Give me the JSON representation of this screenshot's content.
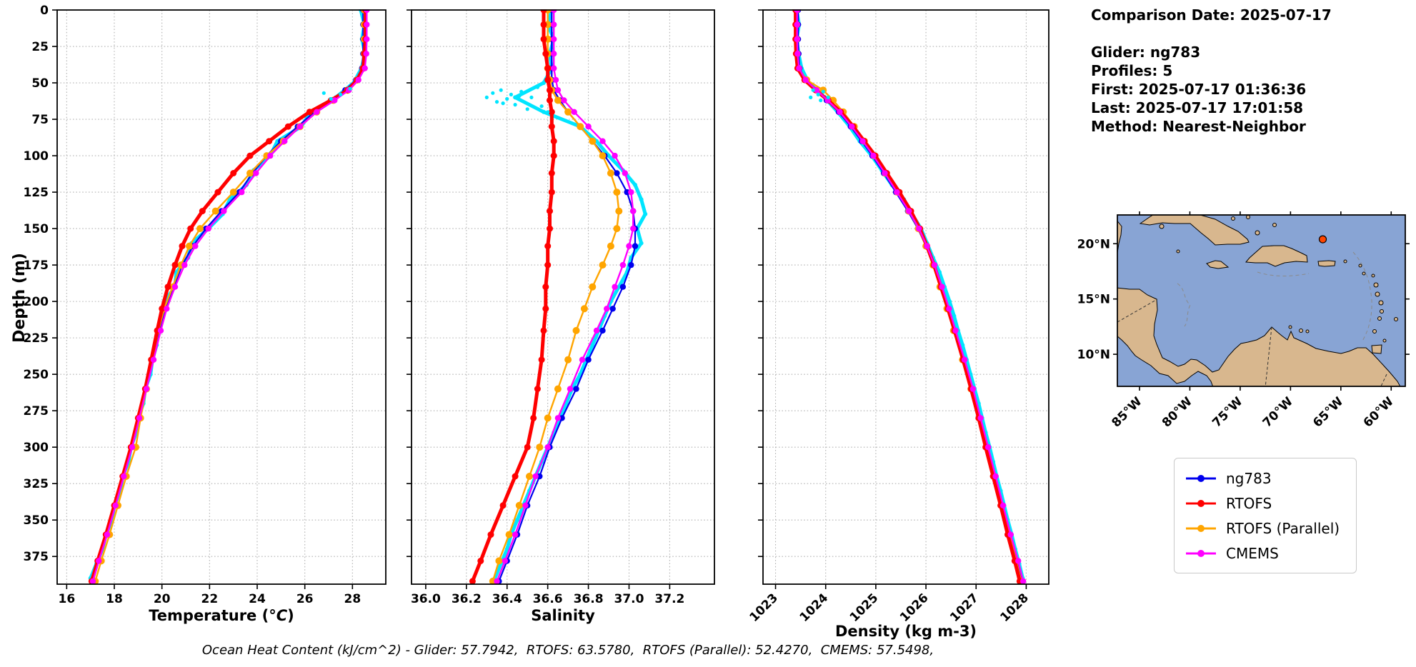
{
  "colors": {
    "ng783": "#0000ee",
    "rtofs": "#ff0000",
    "rtofs_parallel": "#ffa500",
    "cmems": "#ff00ff",
    "glider_raw": "#00e5ff",
    "grid": "#b3b3b3",
    "map_ocean": "#88a4d4",
    "map_land": "#d8b78e",
    "map_marker": "#ff4500"
  },
  "info_panel": {
    "comparison_date": "Comparison Date: 2025-07-17",
    "glider": "Glider: ng783",
    "profiles": "Profiles: 5",
    "first": "First: 2025-07-17 01:36:36",
    "last": "Last: 2025-07-17 17:01:58",
    "method": "Method: Nearest-Neighbor"
  },
  "footer": "Ocean Heat Content (kJ/cm^2) - Glider: 57.7942,  RTOFS: 63.5780,  RTOFS (Parallel): 52.4270,  CMEMS: 57.5498,",
  "legend": {
    "items": [
      {
        "label": "ng783",
        "color": "ng783"
      },
      {
        "label": "RTOFS",
        "color": "rtofs"
      },
      {
        "label": "RTOFS (Parallel)",
        "color": "rtofs_parallel"
      },
      {
        "label": "CMEMS",
        "color": "cmems"
      }
    ]
  },
  "depth_axis": {
    "label": "Depth (m)",
    "range": [
      0,
      394
    ],
    "ticks": [
      0,
      25,
      50,
      75,
      100,
      125,
      150,
      175,
      200,
      225,
      250,
      275,
      300,
      325,
      350,
      375
    ]
  },
  "depth_grids": {
    "model": [
      0,
      10,
      20,
      30,
      40,
      48,
      55,
      62,
      70,
      80,
      90,
      100,
      112,
      125,
      138,
      150,
      162,
      175,
      190,
      205,
      220,
      240,
      260,
      280,
      300,
      320,
      340,
      360,
      378,
      392
    ],
    "raw": [
      0,
      10,
      20,
      30,
      40,
      50,
      60,
      70,
      80,
      90,
      100,
      110,
      120,
      130,
      140,
      150,
      160,
      170,
      180,
      190,
      200,
      210,
      220,
      230,
      240,
      250,
      260,
      270,
      280,
      290,
      300,
      310,
      320,
      330,
      340,
      350,
      360,
      370,
      380,
      390
    ]
  },
  "chart_data": [
    {
      "id": "temperature",
      "type": "line",
      "xlabel_prefix": "Temperature (",
      "xlabel_unit": "°C",
      "xlabel_suffix": ")",
      "xlim": [
        15.6,
        29.4
      ],
      "xticks": [
        16,
        18,
        20,
        22,
        24,
        26,
        28
      ],
      "xtick_labels": [
        "16",
        "18",
        "20",
        "22",
        "24",
        "26",
        "28"
      ],
      "rotate_ticks": false,
      "series": [
        {
          "name": "glider-raw",
          "color": "glider_raw",
          "line_width": 5,
          "marker_radius": 3,
          "depth_grid": "raw",
          "values": [
            28.35,
            28.5,
            28.4,
            28.52,
            28.38,
            28.05,
            27.3,
            26.25,
            25.85,
            24.85,
            24.55,
            23.85,
            23.55,
            22.85,
            22.55,
            21.95,
            21.25,
            21.1,
            20.6,
            20.55,
            20.1,
            20.05,
            19.8,
            19.78,
            19.6,
            19.52,
            19.3,
            19.22,
            19.0,
            18.92,
            18.7,
            18.6,
            18.35,
            18.25,
            18.0,
            17.9,
            17.65,
            17.5,
            17.25,
            17.0
          ]
        },
        {
          "name": "ng783",
          "color": "ng783",
          "line_width": 2.2,
          "marker_radius": 4.2,
          "depth_grid": "model",
          "values": [
            28.45,
            28.45,
            28.45,
            28.45,
            28.4,
            28.15,
            27.7,
            27.1,
            26.4,
            25.7,
            25.0,
            24.4,
            23.8,
            23.25,
            22.5,
            21.85,
            21.3,
            20.85,
            20.5,
            20.15,
            19.9,
            19.6,
            19.35,
            19.05,
            18.75,
            18.4,
            18.05,
            17.7,
            17.35,
            17.1
          ]
        },
        {
          "name": "rtofs-parallel",
          "color": "rtofs_parallel",
          "line_width": 2.4,
          "marker_radius": 5,
          "depth_grid": "model",
          "values": [
            28.5,
            28.5,
            28.5,
            28.5,
            28.45,
            28.2,
            27.8,
            27.2,
            26.5,
            25.8,
            25.1,
            24.4,
            23.7,
            23.0,
            22.25,
            21.6,
            21.15,
            20.8,
            20.45,
            20.1,
            19.85,
            19.6,
            19.35,
            19.1,
            18.9,
            18.5,
            18.15,
            17.8,
            17.45,
            17.2
          ]
        },
        {
          "name": "rtofs",
          "color": "rtofs",
          "line_width": 5,
          "marker_radius": 4.5,
          "depth_grid": "model",
          "values": [
            28.55,
            28.55,
            28.55,
            28.5,
            28.45,
            28.2,
            27.8,
            27.1,
            26.2,
            25.3,
            24.5,
            23.7,
            23.0,
            22.35,
            21.7,
            21.2,
            20.85,
            20.55,
            20.25,
            20.0,
            19.8,
            19.55,
            19.3,
            19.0,
            18.7,
            18.35,
            18.0,
            17.65,
            17.3,
            17.05
          ]
        },
        {
          "name": "cmems",
          "color": "cmems",
          "line_width": 2.4,
          "marker_radius": 4.2,
          "depth_grid": "model",
          "values": [
            28.6,
            28.6,
            28.6,
            28.58,
            28.52,
            28.25,
            27.85,
            27.25,
            26.5,
            25.8,
            25.15,
            24.55,
            23.95,
            23.35,
            22.6,
            21.95,
            21.4,
            20.95,
            20.55,
            20.2,
            19.95,
            19.65,
            19.35,
            19.05,
            18.75,
            18.4,
            18.05,
            17.7,
            17.35,
            17.1
          ]
        }
      ],
      "scatter": {
        "color": "glider_raw",
        "points": [
          [
            27.9,
            54
          ],
          [
            27.5,
            58
          ],
          [
            27.1,
            61
          ],
          [
            26.8,
            57
          ]
        ]
      }
    },
    {
      "id": "salinity",
      "type": "line",
      "xlabel_prefix": "Salinity",
      "xlabel_unit": "",
      "xlabel_suffix": "",
      "xlim": [
        35.93,
        37.42
      ],
      "xticks": [
        36.0,
        36.2,
        36.4,
        36.6,
        36.8,
        37.0,
        37.2
      ],
      "xtick_labels": [
        "36.0",
        "36.2",
        "36.4",
        "36.6",
        "36.8",
        "37.0",
        "37.2"
      ],
      "rotate_ticks": false,
      "series": [
        {
          "name": "glider-raw",
          "color": "glider_raw",
          "line_width": 5,
          "marker_radius": 3,
          "depth_grid": "raw",
          "values": [
            36.62,
            36.6,
            36.63,
            36.61,
            36.62,
            36.58,
            36.44,
            36.58,
            36.76,
            36.84,
            36.9,
            36.97,
            37.03,
            37.06,
            37.08,
            37.04,
            37.06,
            37.01,
            36.99,
            36.95,
            36.91,
            36.88,
            36.85,
            36.82,
            36.79,
            36.76,
            36.72,
            36.69,
            36.66,
            36.63,
            36.6,
            36.57,
            36.54,
            36.51,
            36.48,
            36.45,
            36.42,
            36.4,
            36.37,
            36.34
          ]
        },
        {
          "name": "ng783",
          "color": "ng783",
          "line_width": 2.2,
          "marker_radius": 4.2,
          "depth_grid": "model",
          "values": [
            36.62,
            36.62,
            36.62,
            36.62,
            36.62,
            36.62,
            36.63,
            36.66,
            36.7,
            36.76,
            36.82,
            36.88,
            36.94,
            36.99,
            37.02,
            37.03,
            37.03,
            37.01,
            36.97,
            36.92,
            36.87,
            36.8,
            36.74,
            36.67,
            36.61,
            36.56,
            36.5,
            36.45,
            36.4,
            36.36
          ]
        },
        {
          "name": "rtofs-parallel",
          "color": "rtofs_parallel",
          "line_width": 2.4,
          "marker_radius": 5,
          "depth_grid": "model",
          "values": [
            36.6,
            36.6,
            36.6,
            36.6,
            36.6,
            36.61,
            36.62,
            36.65,
            36.7,
            36.76,
            36.82,
            36.87,
            36.91,
            36.94,
            36.95,
            36.94,
            36.91,
            36.87,
            36.82,
            36.78,
            36.74,
            36.7,
            36.65,
            36.6,
            36.56,
            36.51,
            36.46,
            36.41,
            36.36,
            36.33
          ]
        },
        {
          "name": "rtofs",
          "color": "rtofs",
          "line_width": 5,
          "marker_radius": 4.5,
          "depth_grid": "model",
          "values": [
            36.58,
            36.58,
            36.58,
            36.59,
            36.6,
            36.6,
            36.61,
            36.61,
            36.62,
            36.62,
            36.63,
            36.63,
            36.62,
            36.62,
            36.61,
            36.61,
            36.6,
            36.6,
            36.59,
            36.59,
            36.58,
            36.57,
            36.55,
            36.53,
            36.5,
            36.44,
            36.38,
            36.32,
            36.27,
            36.23
          ]
        },
        {
          "name": "cmems",
          "color": "cmems",
          "line_width": 2.4,
          "marker_radius": 4.2,
          "depth_grid": "model",
          "values": [
            36.63,
            36.63,
            36.63,
            36.63,
            36.63,
            36.64,
            36.65,
            36.68,
            36.73,
            36.8,
            36.87,
            36.93,
            36.98,
            37.01,
            37.02,
            37.02,
            37.0,
            36.97,
            36.93,
            36.89,
            36.84,
            36.77,
            36.71,
            36.65,
            36.6,
            36.54,
            36.49,
            36.44,
            36.39,
            36.35
          ]
        }
      ],
      "scatter": {
        "color": "glider_raw",
        "points": [
          [
            36.33,
            57
          ],
          [
            36.3,
            60
          ],
          [
            36.37,
            55
          ],
          [
            36.42,
            58
          ],
          [
            36.35,
            63
          ],
          [
            36.47,
            56
          ],
          [
            36.52,
            60
          ],
          [
            36.44,
            65
          ],
          [
            36.55,
            53
          ],
          [
            36.57,
            66
          ],
          [
            36.5,
            68
          ],
          [
            36.4,
            61
          ],
          [
            36.6,
            70
          ],
          [
            36.46,
            59
          ],
          [
            36.38,
            64
          ]
        ]
      }
    },
    {
      "id": "density",
      "type": "line",
      "xlabel_prefix": "Density (kg m-3)",
      "xlabel_unit": "",
      "xlabel_suffix": "",
      "xlim": [
        1022.75,
        1028.45
      ],
      "xticks": [
        1023,
        1024,
        1025,
        1026,
        1027,
        1028
      ],
      "xtick_labels": [
        "1023",
        "1024",
        "1025",
        "1026",
        "1027",
        "1028"
      ],
      "rotate_ticks": true,
      "series": [
        {
          "name": "glider-raw",
          "color": "glider_raw",
          "line_width": 5,
          "marker_radius": 3,
          "depth_grid": "raw",
          "values": [
            1023.42,
            1023.47,
            1023.42,
            1023.46,
            1023.52,
            1023.66,
            1023.98,
            1024.24,
            1024.48,
            1024.68,
            1024.92,
            1025.12,
            1025.32,
            1025.56,
            1025.72,
            1025.9,
            1026.02,
            1026.14,
            1026.27,
            1026.37,
            1026.47,
            1026.56,
            1026.64,
            1026.73,
            1026.81,
            1026.89,
            1026.97,
            1027.05,
            1027.12,
            1027.19,
            1027.27,
            1027.34,
            1027.41,
            1027.49,
            1027.56,
            1027.63,
            1027.71,
            1027.78,
            1027.86,
            1027.93
          ]
        },
        {
          "name": "ng783",
          "color": "ng783",
          "line_width": 2.2,
          "marker_radius": 4.2,
          "depth_grid": "model",
          "values": [
            1023.45,
            1023.45,
            1023.45,
            1023.46,
            1023.48,
            1023.6,
            1023.8,
            1024.02,
            1024.26,
            1024.5,
            1024.72,
            1024.93,
            1025.16,
            1025.4,
            1025.64,
            1025.84,
            1026.0,
            1026.15,
            1026.3,
            1026.45,
            1026.58,
            1026.76,
            1026.93,
            1027.08,
            1027.23,
            1027.38,
            1027.53,
            1027.68,
            1027.83,
            1027.93
          ]
        },
        {
          "name": "rtofs-parallel",
          "color": "rtofs_parallel",
          "line_width": 2.4,
          "marker_radius": 5,
          "depth_grid": "model",
          "values": [
            1023.42,
            1023.42,
            1023.42,
            1023.43,
            1023.46,
            1023.62,
            1023.95,
            1024.15,
            1024.35,
            1024.57,
            1024.77,
            1024.97,
            1025.19,
            1025.43,
            1025.66,
            1025.85,
            1026.0,
            1026.14,
            1026.28,
            1026.42,
            1026.55,
            1026.73,
            1026.9,
            1027.06,
            1027.21,
            1027.36,
            1027.51,
            1027.66,
            1027.8,
            1027.9
          ]
        },
        {
          "name": "rtofs",
          "color": "rtofs",
          "line_width": 5,
          "marker_radius": 4.5,
          "depth_grid": "model",
          "values": [
            1023.4,
            1023.4,
            1023.4,
            1023.41,
            1023.44,
            1023.58,
            1023.8,
            1024.05,
            1024.3,
            1024.55,
            1024.77,
            1024.99,
            1025.22,
            1025.47,
            1025.7,
            1025.88,
            1026.02,
            1026.16,
            1026.3,
            1026.44,
            1026.57,
            1026.74,
            1026.9,
            1027.05,
            1027.19,
            1027.34,
            1027.49,
            1027.63,
            1027.77,
            1027.87
          ]
        },
        {
          "name": "cmems",
          "color": "cmems",
          "line_width": 2.4,
          "marker_radius": 4.2,
          "depth_grid": "model",
          "values": [
            1023.43,
            1023.43,
            1023.43,
            1023.44,
            1023.47,
            1023.6,
            1023.82,
            1024.04,
            1024.28,
            1024.52,
            1024.74,
            1024.95,
            1025.18,
            1025.42,
            1025.66,
            1025.86,
            1026.02,
            1026.17,
            1026.32,
            1026.46,
            1026.59,
            1026.77,
            1026.94,
            1027.09,
            1027.24,
            1027.39,
            1027.54,
            1027.69,
            1027.84,
            1027.94
          ]
        }
      ],
      "scatter": {
        "color": "glider_raw",
        "points": [
          [
            1023.75,
            55
          ],
          [
            1023.85,
            58
          ],
          [
            1023.7,
            60
          ],
          [
            1023.95,
            56
          ],
          [
            1024.05,
            60
          ],
          [
            1023.9,
            62
          ]
        ]
      }
    }
  ],
  "map": {
    "extent": {
      "lon_min": -87.2,
      "lon_max": -58.6,
      "lat_min": 7.1,
      "lat_max": 22.6
    },
    "lon_ticks": [
      {
        "value": -85,
        "label": "85°W"
      },
      {
        "value": -80,
        "label": "80°W"
      },
      {
        "value": -75,
        "label": "75°W"
      },
      {
        "value": -70,
        "label": "70°W"
      },
      {
        "value": -65,
        "label": "65°W"
      },
      {
        "value": -60,
        "label": "60°W"
      }
    ],
    "lat_ticks": [
      {
        "value": 20,
        "label": "20°N"
      },
      {
        "value": 15,
        "label": "15°N"
      },
      {
        "value": 10,
        "label": "10°N"
      }
    ],
    "marker": {
      "lon": -66.8,
      "lat": 20.4
    }
  }
}
